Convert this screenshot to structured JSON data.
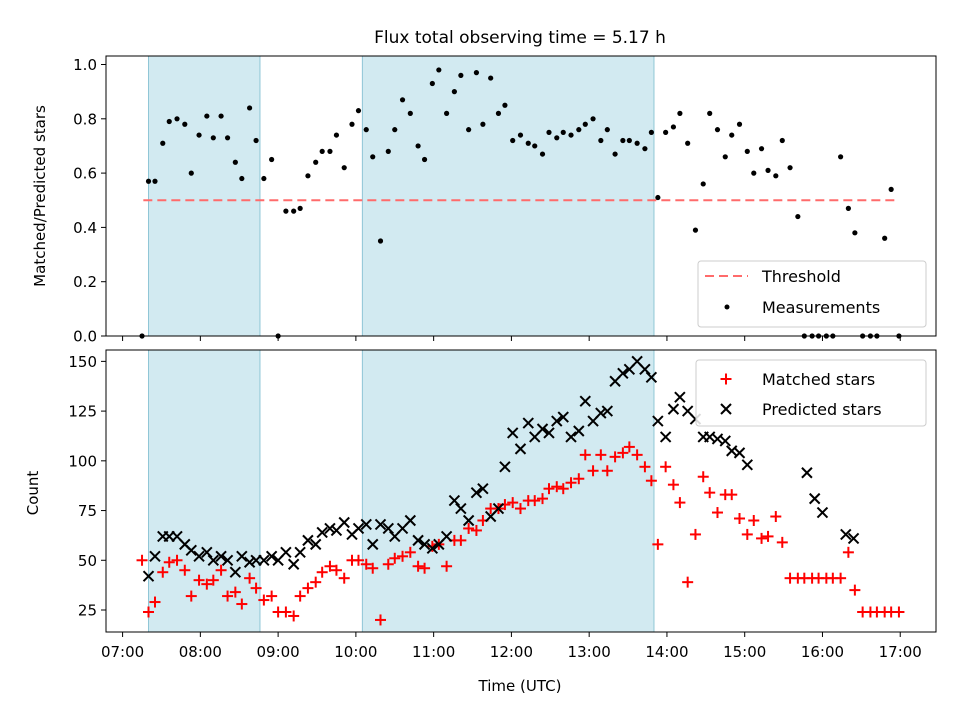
{
  "title": "Flux total observing time = 5.17 h",
  "colors": {
    "threshold": "#ff6b6b",
    "matched": "#ff0000",
    "predicted": "#000000",
    "measurement": "#000000",
    "span": "#add8e6"
  },
  "chart_data": [
    {
      "type": "scatter",
      "ylabel": "Matched/Predicted stars",
      "xlabel": "",
      "xlim": [
        "07:00",
        "17:00"
      ],
      "ylim": [
        0,
        1.0
      ],
      "yticks": [
        "0.0",
        "0.2",
        "0.4",
        "0.6",
        "0.8",
        "1.0"
      ],
      "shaded_spans": [
        [
          "07:20",
          "08:46"
        ],
        [
          "10:05",
          "13:50"
        ]
      ],
      "threshold": {
        "name": "Threshold",
        "value": 0.5,
        "x_range": [
          "07:16",
          "16:58"
        ]
      },
      "legend": {
        "placement": "lower right",
        "entries": [
          "Threshold",
          "Measurements"
        ]
      },
      "series": [
        {
          "name": "Measurements",
          "x": [
            "07:15",
            "07:20",
            "07:25",
            "07:31",
            "07:36",
            "07:42",
            "07:48",
            "07:53",
            "07:59",
            "08:05",
            "08:10",
            "08:16",
            "08:21",
            "08:27",
            "08:32",
            "08:38",
            "08:43",
            "08:49",
            "08:55",
            "09:00",
            "09:06",
            "09:12",
            "09:17",
            "09:23",
            "09:29",
            "09:34",
            "09:40",
            "09:45",
            "09:51",
            "09:57",
            "10:02",
            "10:08",
            "10:13",
            "10:19",
            "10:25",
            "10:30",
            "10:36",
            "10:42",
            "10:48",
            "10:53",
            "10:59",
            "11:04",
            "11:10",
            "11:16",
            "11:21",
            "11:27",
            "11:33",
            "11:38",
            "11:44",
            "11:50",
            "11:55",
            "12:01",
            "12:07",
            "12:13",
            "12:18",
            "12:24",
            "12:29",
            "12:35",
            "12:40",
            "12:46",
            "12:52",
            "12:57",
            "13:03",
            "13:09",
            "13:14",
            "13:20",
            "13:26",
            "13:31",
            "13:37",
            "13:43",
            "13:48",
            "13:53",
            "13:59",
            "14:05",
            "14:10",
            "14:16",
            "14:22",
            "14:28",
            "14:33",
            "14:39",
            "14:45",
            "14:50",
            "14:56",
            "15:02",
            "15:07",
            "15:13",
            "15:18",
            "15:24",
            "15:29",
            "15:35",
            "15:41",
            "15:46",
            "15:52",
            "15:57",
            "16:03",
            "16:08",
            "16:14",
            "16:20",
            "16:25",
            "16:31",
            "16:37",
            "16:42",
            "16:48",
            "16:53",
            "16:59"
          ],
          "y": [
            0.0,
            0.57,
            0.57,
            0.71,
            0.79,
            0.8,
            0.78,
            0.6,
            0.74,
            0.81,
            0.73,
            0.81,
            0.73,
            0.64,
            0.58,
            0.84,
            0.72,
            0.58,
            0.65,
            0.0,
            0.46,
            0.46,
            0.47,
            0.59,
            0.64,
            0.68,
            0.68,
            0.74,
            0.62,
            0.78,
            0.83,
            0.76,
            0.66,
            0.35,
            0.68,
            0.76,
            0.87,
            0.82,
            0.7,
            0.65,
            0.93,
            0.98,
            0.82,
            0.9,
            0.96,
            0.76,
            0.97,
            0.78,
            0.95,
            0.82,
            0.85,
            0.72,
            0.74,
            0.71,
            0.7,
            0.67,
            0.75,
            0.73,
            0.75,
            0.74,
            0.76,
            0.78,
            0.8,
            0.72,
            0.76,
            0.67,
            0.72,
            0.72,
            0.71,
            0.69,
            0.75,
            0.51,
            0.75,
            0.77,
            0.82,
            0.71,
            0.39,
            0.56,
            0.82,
            0.76,
            0.66,
            0.74,
            0.78,
            0.68,
            0.6,
            0.69,
            0.61,
            0.59,
            0.72,
            0.62,
            0.44,
            0.0,
            0.0,
            0.0,
            0.0,
            0.0,
            0.66,
            0.47,
            0.38,
            0.0,
            0.0,
            0.0,
            0.36,
            0.54,
            0.0
          ]
        }
      ]
    },
    {
      "type": "scatter",
      "ylabel": "Count",
      "xlabel": "Time (UTC)",
      "xlim": [
        "07:00",
        "17:00"
      ],
      "ylim": [
        14,
        155
      ],
      "yticks": [
        "25",
        "50",
        "75",
        "100",
        "125",
        "150"
      ],
      "xticks": [
        "07:00",
        "08:00",
        "09:00",
        "10:00",
        "11:00",
        "12:00",
        "13:00",
        "14:00",
        "15:00",
        "16:00",
        "17:00"
      ],
      "shaded_spans": [
        [
          "07:20",
          "08:46"
        ],
        [
          "10:05",
          "13:50"
        ]
      ],
      "legend": {
        "placement": "upper right",
        "entries": [
          "Matched stars",
          "Predicted stars"
        ]
      },
      "series": [
        {
          "name": "Matched stars",
          "x": [
            "07:15",
            "07:20",
            "07:25",
            "07:31",
            "07:36",
            "07:42",
            "07:48",
            "07:53",
            "07:59",
            "08:05",
            "08:10",
            "08:16",
            "08:21",
            "08:27",
            "08:32",
            "08:38",
            "08:43",
            "08:49",
            "08:55",
            "09:00",
            "09:06",
            "09:12",
            "09:17",
            "09:23",
            "09:29",
            "09:34",
            "09:40",
            "09:45",
            "09:51",
            "09:57",
            "10:02",
            "10:08",
            "10:13",
            "10:19",
            "10:25",
            "10:30",
            "10:36",
            "10:42",
            "10:48",
            "10:53",
            "10:59",
            "11:04",
            "11:10",
            "11:16",
            "11:21",
            "11:27",
            "11:33",
            "11:38",
            "11:44",
            "11:50",
            "11:55",
            "12:01",
            "12:07",
            "12:13",
            "12:18",
            "12:24",
            "12:29",
            "12:35",
            "12:40",
            "12:46",
            "12:52",
            "12:57",
            "13:03",
            "13:09",
            "13:14",
            "13:20",
            "13:26",
            "13:31",
            "13:37",
            "13:43",
            "13:48",
            "13:53",
            "13:59",
            "14:05",
            "14:10",
            "14:16",
            "14:22",
            "14:28",
            "14:33",
            "14:39",
            "14:45",
            "14:50",
            "14:56",
            "15:02",
            "15:07",
            "15:13",
            "15:18",
            "15:24",
            "15:29",
            "15:35",
            "15:41",
            "15:46",
            "15:52",
            "15:57",
            "16:03",
            "16:08",
            "16:14",
            "16:20",
            "16:25",
            "16:31",
            "16:37",
            "16:42",
            "16:48",
            "16:53",
            "16:59"
          ],
          "y": [
            50,
            24,
            29,
            44,
            49,
            50,
            45,
            32,
            40,
            38,
            40,
            45,
            32,
            34,
            28,
            41,
            36,
            30,
            32,
            24,
            24,
            22,
            32,
            36,
            39,
            44,
            47,
            45,
            41,
            50,
            50,
            48,
            46,
            20,
            48,
            51,
            52,
            54,
            47,
            46,
            57,
            58,
            47,
            60,
            60,
            66,
            65,
            70,
            76,
            76,
            78,
            79,
            76,
            80,
            80,
            81,
            86,
            87,
            86,
            89,
            91,
            103,
            95,
            103,
            95,
            102,
            104,
            107,
            103,
            97,
            90,
            58,
            97,
            88,
            79,
            39,
            63,
            92,
            84,
            74,
            83,
            83,
            71,
            63,
            70,
            61,
            62,
            72,
            59,
            41,
            41,
            41,
            41,
            41,
            41,
            41,
            41,
            54,
            35,
            24,
            24,
            24,
            24,
            24,
            24
          ]
        },
        {
          "name": "Predicted stars",
          "x": [
            "07:20",
            "07:25",
            "07:31",
            "07:36",
            "07:42",
            "07:48",
            "07:53",
            "07:59",
            "08:05",
            "08:10",
            "08:16",
            "08:21",
            "08:27",
            "08:32",
            "08:38",
            "08:43",
            "08:49",
            "08:55",
            "09:00",
            "09:06",
            "09:12",
            "09:17",
            "09:23",
            "09:29",
            "09:34",
            "09:40",
            "09:45",
            "09:51",
            "09:57",
            "10:02",
            "10:08",
            "10:13",
            "10:19",
            "10:25",
            "10:30",
            "10:36",
            "10:42",
            "10:48",
            "10:53",
            "10:59",
            "11:04",
            "11:10",
            "11:16",
            "11:21",
            "11:27",
            "11:33",
            "11:38",
            "11:44",
            "11:50",
            "11:55",
            "12:01",
            "12:07",
            "12:13",
            "12:18",
            "12:24",
            "12:29",
            "12:35",
            "12:40",
            "12:46",
            "12:52",
            "12:57",
            "13:03",
            "13:09",
            "13:14",
            "13:20",
            "13:26",
            "13:31",
            "13:37",
            "13:43",
            "13:48",
            "13:53",
            "13:59",
            "14:05",
            "14:10",
            "14:16",
            "14:22",
            "14:28",
            "14:33",
            "14:39",
            "14:45",
            "14:50",
            "14:56",
            "15:02",
            "15:48",
            "15:54",
            "16:00",
            "16:18",
            "16:24"
          ],
          "y": [
            42,
            52,
            62,
            62,
            62,
            58,
            55,
            52,
            54,
            50,
            52,
            50,
            44,
            52,
            49,
            50,
            50,
            52,
            50,
            54,
            48,
            54,
            60,
            58,
            64,
            66,
            65,
            69,
            63,
            66,
            68,
            58,
            68,
            66,
            62,
            66,
            70,
            60,
            58,
            56,
            58,
            62,
            80,
            76,
            70,
            84,
            86,
            72,
            76,
            97,
            114,
            106,
            119,
            112,
            116,
            114,
            120,
            122,
            112,
            115,
            130,
            120,
            124,
            125,
            140,
            144,
            146,
            150,
            146,
            142,
            120,
            112,
            126,
            132,
            125,
            121,
            112,
            112,
            111,
            110,
            105,
            104,
            98,
            94,
            81,
            74,
            63,
            61
          ]
        }
      ]
    }
  ]
}
